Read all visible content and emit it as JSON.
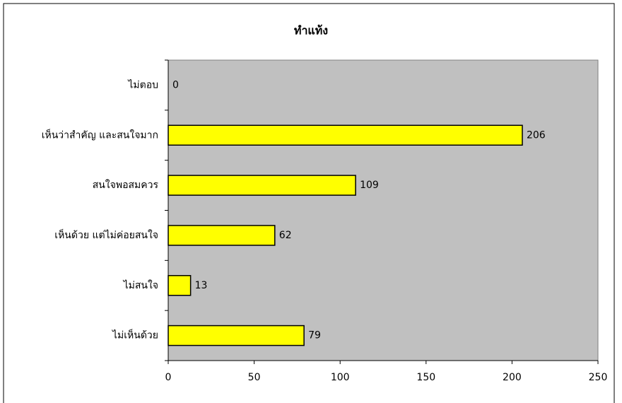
{
  "chart_data": {
    "type": "bar",
    "orientation": "horizontal",
    "title": "ทำแท้ง",
    "categories": [
      "ไม่ตอบ",
      "เห็นว่าสำคัญ และสนใจมาก",
      "สนใจพอสมควร",
      "เห็นด้วย แต่ไม่ค่อยสนใจ",
      "ไม่สนใจ",
      "ไม่เห็นด้วย"
    ],
    "values": [
      0,
      206,
      109,
      62,
      13,
      79
    ],
    "color": "#ffff00",
    "xlim": [
      0,
      250
    ],
    "xticks": [
      0,
      50,
      100,
      150,
      200,
      250
    ],
    "grid": false
  }
}
